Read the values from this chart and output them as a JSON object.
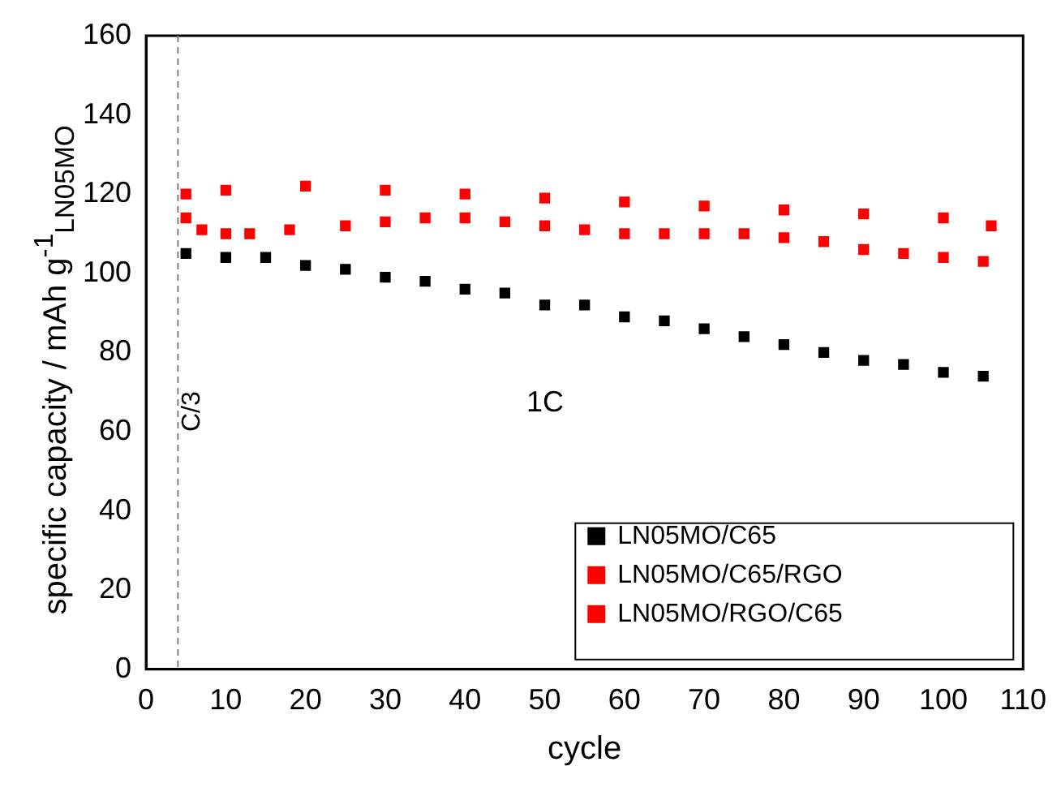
{
  "chart_data": {
    "type": "scatter",
    "xlabel": "cycle",
    "ylabel": "specific capacity / mAh g$^{-1}$$_{LN05MO}$",
    "xlim": [
      0,
      110
    ],
    "xticks": [
      0,
      10,
      20,
      30,
      40,
      50,
      60,
      70,
      80,
      90,
      100,
      110
    ],
    "ylim": [
      0,
      160
    ],
    "yticks": [
      0,
      20,
      40,
      60,
      80,
      100,
      120,
      140,
      160
    ],
    "grid": false,
    "legend": "bottom right",
    "marker": "square",
    "ref_lines": [
      {
        "axis": "x",
        "value": 4,
        "label": "C/3",
        "color": "#808080",
        "line_style": "dashed"
      }
    ],
    "annotations": [
      "1C"
    ],
    "series": [
      {
        "name": "LN05MO/C65",
        "color": "#000000",
        "x": [
          5,
          10,
          15,
          20,
          25,
          30,
          35,
          40,
          45,
          50,
          55,
          60,
          65,
          70,
          75,
          80,
          85,
          90,
          95,
          100,
          105
        ],
        "values": [
          105,
          104,
          104,
          102,
          101,
          99,
          98,
          96,
          95,
          92,
          92,
          89,
          88,
          86,
          84,
          82,
          80,
          78,
          77,
          75,
          74
        ]
      },
      {
        "name": "LN05MO/C65/RGO",
        "color": "#ff0000",
        "x": [
          5,
          7,
          10,
          13,
          18,
          25,
          30,
          35,
          40,
          45,
          50,
          55,
          60,
          65,
          70,
          75,
          80,
          85,
          90,
          95,
          100,
          105
        ],
        "values": [
          114,
          111,
          110,
          110,
          111,
          112,
          113,
          114,
          114,
          113,
          112,
          111,
          110,
          110,
          110,
          110,
          109,
          108,
          106,
          105,
          104,
          103
        ]
      },
      {
        "name": "LN05MO/RGO/C65",
        "color": "#ff0000",
        "x": [
          5,
          10,
          20,
          30,
          40,
          50,
          60,
          70,
          80,
          90,
          100,
          106
        ],
        "values": [
          120,
          121,
          122,
          121,
          120,
          119,
          118,
          117,
          116,
          115,
          114,
          112
        ]
      }
    ]
  }
}
